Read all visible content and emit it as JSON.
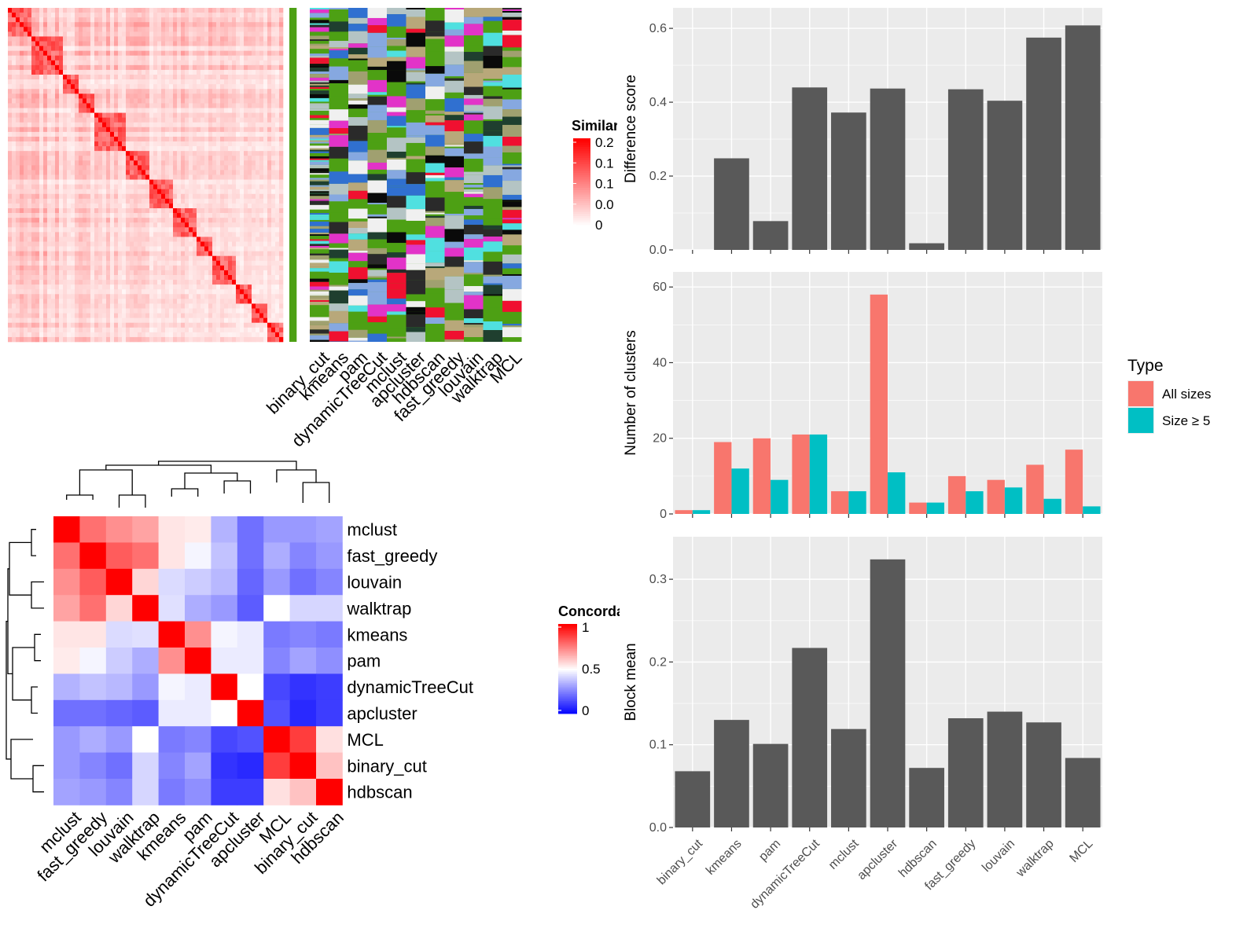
{
  "methods_bars": [
    "binary_cut",
    "kmeans",
    "pam",
    "dynamicTreeCut",
    "mclust",
    "apcluster",
    "hdbscan",
    "fast_greedy",
    "louvain",
    "walktrap",
    "MCL"
  ],
  "colors": {
    "panel_bg": "#ebebeb",
    "grid": "#ffffff",
    "bar": "#595959",
    "all_sizes": "#F8766D",
    "size5": "#00BFC4",
    "hm_high": "#ff0000",
    "hm_mid": "#ffffff",
    "hm_low": "#0000ff"
  },
  "similarity_legend": {
    "title": "Similarity",
    "ticks": [
      "0.2",
      "0.1",
      "0.1",
      "0.0",
      "0"
    ]
  },
  "concordance_legend": {
    "title": "Concordance",
    "ticks": [
      "1",
      "0.5",
      "0"
    ]
  },
  "clustering_columns": [
    "binary_cut",
    "kmeans",
    "pam",
    "dynamicTreeCut",
    "mclust",
    "apcluster",
    "hdbscan",
    "fast_greedy",
    "louvain",
    "walktrap",
    "MCL"
  ],
  "concordance": {
    "row_labels": [
      "mclust",
      "fast_greedy",
      "louvain",
      "walktrap",
      "kmeans",
      "pam",
      "dynamicTreeCut",
      "apcluster",
      "MCL",
      "binary_cut",
      "hdbscan"
    ],
    "col_labels": [
      "mclust",
      "fast_greedy",
      "louvain",
      "walktrap",
      "kmeans",
      "pam",
      "dynamicTreeCut",
      "apcluster",
      "MCL",
      "binary_cut",
      "hdbscan"
    ],
    "matrix": [
      [
        1.0,
        0.78,
        0.72,
        0.68,
        0.55,
        0.54,
        0.35,
        0.22,
        0.3,
        0.3,
        0.32
      ],
      [
        0.78,
        1.0,
        0.82,
        0.78,
        0.55,
        0.48,
        0.38,
        0.22,
        0.34,
        0.26,
        0.3
      ],
      [
        0.72,
        0.82,
        1.0,
        0.58,
        0.43,
        0.4,
        0.36,
        0.2,
        0.3,
        0.22,
        0.26
      ],
      [
        0.68,
        0.78,
        0.58,
        1.0,
        0.44,
        0.34,
        0.3,
        0.18,
        0.5,
        0.42,
        0.42
      ],
      [
        0.55,
        0.55,
        0.43,
        0.44,
        1.0,
        0.72,
        0.48,
        0.46,
        0.24,
        0.26,
        0.24
      ],
      [
        0.54,
        0.48,
        0.4,
        0.34,
        0.72,
        1.0,
        0.46,
        0.46,
        0.26,
        0.32,
        0.28
      ],
      [
        0.35,
        0.38,
        0.36,
        0.3,
        0.48,
        0.46,
        1.0,
        0.5,
        0.14,
        0.1,
        0.12
      ],
      [
        0.22,
        0.22,
        0.2,
        0.18,
        0.46,
        0.46,
        0.5,
        1.0,
        0.16,
        0.08,
        0.12
      ],
      [
        0.3,
        0.34,
        0.3,
        0.5,
        0.24,
        0.26,
        0.14,
        0.16,
        1.0,
        0.88,
        0.56
      ],
      [
        0.3,
        0.26,
        0.22,
        0.42,
        0.26,
        0.32,
        0.1,
        0.08,
        0.88,
        1.0,
        0.62
      ],
      [
        0.32,
        0.3,
        0.26,
        0.42,
        0.24,
        0.28,
        0.12,
        0.12,
        0.56,
        0.62,
        1.0
      ]
    ]
  },
  "chart_data": [
    {
      "type": "bar",
      "categories": [
        "binary_cut",
        "kmeans",
        "pam",
        "dynamicTreeCut",
        "mclust",
        "apcluster",
        "hdbscan",
        "fast_greedy",
        "louvain",
        "walktrap",
        "MCL"
      ],
      "values": [
        0.0,
        0.248,
        0.078,
        0.44,
        0.372,
        0.437,
        0.018,
        0.435,
        0.404,
        0.575,
        0.608
      ],
      "ylabel": "Difference score",
      "ylim": [
        0,
        0.63
      ],
      "yticks": [
        "0.0",
        "0.2",
        "0.4",
        "0.6"
      ]
    },
    {
      "type": "bar",
      "categories": [
        "binary_cut",
        "kmeans",
        "pam",
        "dynamicTreeCut",
        "mclust",
        "apcluster",
        "hdbscan",
        "fast_greedy",
        "louvain",
        "walktrap",
        "MCL"
      ],
      "ylabel": "Number of clusters",
      "ylim": [
        0,
        61.5
      ],
      "yticks": [
        "0",
        "20",
        "40",
        "60"
      ],
      "legend": {
        "title": "Type",
        "position": "right"
      },
      "series": [
        {
          "name": "All sizes",
          "values": [
            1,
            19,
            20,
            21,
            6,
            58,
            3,
            10,
            9,
            13,
            17
          ]
        },
        {
          "name": "Size ≥ 5",
          "values": [
            1,
            12,
            9,
            21,
            6,
            11,
            3,
            6,
            7,
            4,
            2
          ]
        }
      ]
    },
    {
      "type": "bar",
      "categories": [
        "binary_cut",
        "kmeans",
        "pam",
        "dynamicTreeCut",
        "mclust",
        "apcluster",
        "hdbscan",
        "fast_greedy",
        "louvain",
        "walktrap",
        "MCL"
      ],
      "values": [
        0.068,
        0.13,
        0.101,
        0.217,
        0.119,
        0.324,
        0.072,
        0.132,
        0.14,
        0.127,
        0.084
      ],
      "ylabel": "Block mean",
      "ylim": [
        0,
        0.34
      ],
      "yticks": [
        "0.0",
        "0.1",
        "0.2",
        "0.3"
      ]
    }
  ]
}
